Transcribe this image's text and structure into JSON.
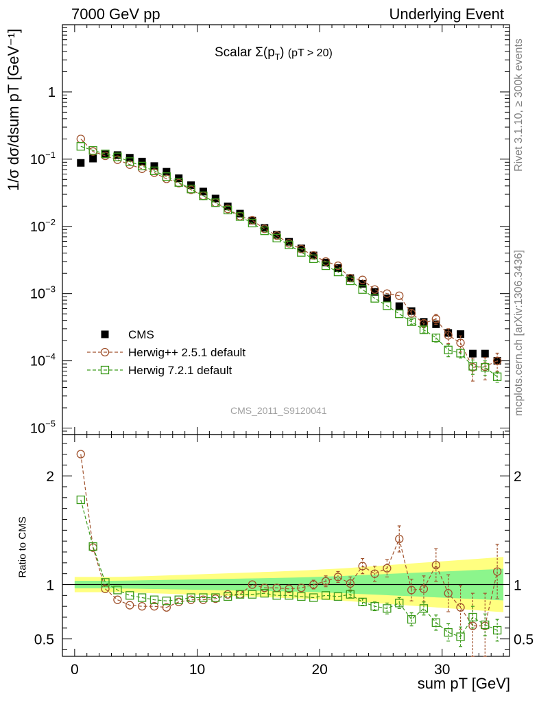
{
  "header": {
    "left": "7000 GeV pp",
    "right": "Underlying Event",
    "plot_title_prefix": "Scalar ",
    "plot_title_sigma": "Σ(p",
    "plot_title_sub": "T",
    "plot_title_suffix": ")",
    "plot_title_cut": "(pT > 20)",
    "analysis_tag": "CMS_2011_S9120041"
  },
  "side_labels": {
    "rivet": "Rivet 3.1.10, ≥ 300k events",
    "mcplots": "mcplots.cern.ch [arXiv:1306.3436]"
  },
  "colors": {
    "cms": "#000000",
    "herwigpp": "#a0522d",
    "herwig7": "#3a9a1a",
    "band_inner": "#8cf58c",
    "band_outer": "#ffff80"
  },
  "chart_data": [
    {
      "type": "scatter",
      "panel": "main",
      "title": "Scalar Σ(pT) (pT > 20)",
      "ylabel": "1/σ dσ/dsum pT [GeV⁻¹]",
      "xlim": [
        -1,
        35.5
      ],
      "ylim": [
        8e-06,
        10
      ],
      "yscale": "log",
      "yticks": [
        {
          "v": 1e-05,
          "m": "10",
          "e": "−5"
        },
        {
          "v": 0.0001,
          "m": "10",
          "e": "−4"
        },
        {
          "v": 0.001,
          "m": "10",
          "e": "−3"
        },
        {
          "v": 0.01,
          "m": "10",
          "e": "−2"
        },
        {
          "v": 0.1,
          "m": "10",
          "e": "−1"
        },
        {
          "v": 1,
          "m": "1",
          "e": ""
        }
      ],
      "legend_position": "lower-left",
      "x": [
        0.5,
        1.5,
        2.5,
        3.5,
        4.5,
        5.5,
        6.5,
        7.5,
        8.5,
        9.5,
        10.5,
        11.5,
        12.5,
        13.5,
        14.5,
        15.5,
        16.5,
        17.5,
        18.5,
        19.5,
        20.5,
        21.5,
        22.5,
        23.5,
        24.5,
        25.5,
        26.5,
        27.5,
        28.5,
        29.5,
        30.5,
        31.5,
        32.5,
        33.5,
        34.5
      ],
      "series": [
        {
          "name": "CMS",
          "marker": "filled-square",
          "values": [
            0.088,
            0.102,
            0.118,
            0.115,
            0.105,
            0.092,
            0.079,
            0.065,
            0.052,
            0.041,
            0.033,
            0.026,
            0.0198,
            0.0155,
            0.0122,
            0.0095,
            0.0075,
            0.0059,
            0.0047,
            0.0037,
            0.0029,
            0.0024,
            0.0017,
            0.0014,
            0.00106,
            0.00085,
            0.00065,
            0.00055,
            0.00038,
            0.00035,
            0.00026,
            0.00025,
            0.000128,
            0.000128,
            0.0001
          ]
        },
        {
          "name": "Herwig++ 2.5.1 default",
          "marker": "open-circle",
          "values": [
            0.2,
            0.13,
            0.112,
            0.098,
            0.083,
            0.072,
            0.063,
            0.051,
            0.044,
            0.035,
            0.0285,
            0.0225,
            0.0182,
            0.0142,
            0.0123,
            0.0092,
            0.0073,
            0.0056,
            0.0046,
            0.0037,
            0.003,
            0.0026,
            0.0017,
            0.0016,
            0.00115,
            0.001,
            0.00093,
            0.00051,
            0.00036,
            0.00042,
            0.00024,
            0.000185,
            8e-05,
            8.2e-05,
            0.0001
          ],
          "errors_up": [
            0,
            0,
            0,
            0,
            0,
            0,
            0,
            0,
            0,
            0,
            0,
            0,
            0,
            0,
            0,
            0,
            0,
            0,
            0,
            0,
            0,
            0,
            0,
            0,
            0,
            0,
            0,
            6e-05,
            5e-05,
            7e-05,
            6e-05,
            5e-05,
            3e-05,
            3e-05,
            3e-05
          ],
          "errors_down": [
            0,
            0,
            0,
            0,
            0,
            0,
            0,
            0,
            0,
            0,
            0,
            0,
            0,
            0,
            0,
            0,
            0,
            0,
            0,
            0,
            0,
            0,
            0,
            0,
            0,
            0,
            0,
            6e-05,
            5e-05,
            7e-05,
            6e-05,
            5e-05,
            3e-05,
            3e-05,
            3e-05
          ]
        },
        {
          "name": "Herwig 7.2.1 default",
          "marker": "open-square",
          "values": [
            0.155,
            0.135,
            0.12,
            0.108,
            0.092,
            0.079,
            0.067,
            0.055,
            0.045,
            0.036,
            0.0285,
            0.0225,
            0.0175,
            0.014,
            0.0112,
            0.0086,
            0.0067,
            0.0053,
            0.0041,
            0.0033,
            0.0026,
            0.0021,
            0.00155,
            0.00115,
            0.00085,
            0.00066,
            0.0005,
            0.00038,
            0.00029,
            0.00022,
            0.000145,
            0.00013,
            8.3e-05,
            8e-05,
            5.8e-05
          ],
          "errors_up": [
            0,
            0,
            0,
            0,
            0,
            0,
            0,
            0,
            0,
            0,
            0,
            0,
            0,
            0,
            0,
            0,
            0,
            0,
            0,
            0,
            0,
            0,
            0,
            0,
            0,
            0,
            0,
            3e-05,
            3e-05,
            3e-05,
            3e-05,
            2e-05,
            2e-05,
            2e-05,
            1e-05
          ],
          "errors_down": [
            0,
            0,
            0,
            0,
            0,
            0,
            0,
            0,
            0,
            0,
            0,
            0,
            0,
            0,
            0,
            0,
            0,
            0,
            0,
            0,
            0,
            0,
            0,
            0,
            0,
            0,
            0,
            3e-05,
            3e-05,
            3e-05,
            3e-05,
            2e-05,
            2e-05,
            2e-05,
            1e-05
          ]
        }
      ]
    },
    {
      "type": "scatter",
      "panel": "ratio",
      "ylabel": "Ratio to CMS",
      "xlabel": "sum pT [GeV]",
      "xlim": [
        -1,
        35.5
      ],
      "ylim": [
        0.34,
        2.38
      ],
      "yticks": [
        {
          "v": 0.5,
          "l": "0.5"
        },
        {
          "v": 1,
          "l": "1"
        },
        {
          "v": 2,
          "l": "2"
        }
      ],
      "xticks": [
        {
          "v": 0,
          "l": "0"
        },
        {
          "v": 10,
          "l": "10"
        },
        {
          "v": 20,
          "l": "20"
        },
        {
          "v": 30,
          "l": "30"
        }
      ],
      "band_x": [
        0,
        1,
        2,
        3,
        4,
        5,
        6,
        7,
        8,
        9,
        10,
        11,
        12,
        13,
        14,
        15,
        16,
        17,
        18,
        19,
        20,
        21,
        22,
        23,
        24,
        25,
        26,
        27,
        28,
        29,
        30,
        31,
        32,
        33,
        34,
        35
      ],
      "band_inner": [
        0.035,
        0.035,
        0.035,
        0.035,
        0.036,
        0.038,
        0.04,
        0.042,
        0.044,
        0.046,
        0.048,
        0.05,
        0.052,
        0.054,
        0.056,
        0.058,
        0.06,
        0.062,
        0.065,
        0.068,
        0.072,
        0.076,
        0.08,
        0.085,
        0.09,
        0.095,
        0.1,
        0.105,
        0.11,
        0.115,
        0.12,
        0.125,
        0.13,
        0.135,
        0.14,
        0.145
      ],
      "band_outer": [
        0.07,
        0.07,
        0.07,
        0.07,
        0.072,
        0.075,
        0.078,
        0.082,
        0.086,
        0.09,
        0.094,
        0.098,
        0.102,
        0.106,
        0.11,
        0.114,
        0.118,
        0.122,
        0.127,
        0.132,
        0.138,
        0.144,
        0.15,
        0.158,
        0.166,
        0.174,
        0.182,
        0.19,
        0.198,
        0.206,
        0.214,
        0.222,
        0.23,
        0.238,
        0.246,
        0.254
      ],
      "x": [
        0.5,
        1.5,
        2.5,
        3.5,
        4.5,
        5.5,
        6.5,
        7.5,
        8.5,
        9.5,
        10.5,
        11.5,
        12.5,
        13.5,
        14.5,
        15.5,
        16.5,
        17.5,
        18.5,
        19.5,
        20.5,
        21.5,
        22.5,
        23.5,
        24.5,
        25.5,
        26.5,
        27.5,
        28.5,
        29.5,
        30.5,
        31.5,
        32.5,
        33.5,
        34.5
      ],
      "series": [
        {
          "name": "Herwig++ 2.5.1 default",
          "marker": "open-circle",
          "values": [
            2.2,
            1.34,
            0.96,
            0.86,
            0.81,
            0.8,
            0.8,
            0.79,
            0.84,
            0.86,
            0.86,
            0.87,
            0.91,
            0.91,
            1.0,
            0.97,
            0.97,
            0.96,
            0.97,
            1.0,
            1.03,
            1.07,
            1.01,
            1.17,
            1.1,
            1.15,
            1.42,
            0.95,
            0.96,
            1.18,
            0.92,
            0.79,
            0.62,
            0.62,
            1.12
          ],
          "errors": [
            0,
            0,
            0,
            0,
            0,
            0,
            0,
            0,
            0,
            0,
            0,
            0,
            0,
            0,
            0,
            0,
            0,
            0,
            0,
            0.04,
            0.05,
            0.05,
            0.06,
            0.07,
            0.07,
            0.08,
            0.12,
            0.1,
            0.12,
            0.15,
            0.17,
            0.2,
            0.3,
            0.3,
            0.25
          ]
        },
        {
          "name": "Herwig 7.2.1 default",
          "marker": "open-square",
          "values": [
            1.78,
            1.35,
            1.02,
            0.95,
            0.9,
            0.88,
            0.86,
            0.85,
            0.86,
            0.88,
            0.88,
            0.88,
            0.89,
            0.91,
            0.91,
            0.92,
            0.9,
            0.9,
            0.89,
            0.88,
            0.9,
            0.89,
            0.91,
            0.84,
            0.8,
            0.78,
            0.83,
            0.68,
            0.78,
            0.65,
            0.56,
            0.52,
            0.7,
            0.63,
            0.58
          ],
          "errors": [
            0,
            0,
            0,
            0,
            0,
            0,
            0,
            0,
            0,
            0,
            0,
            0,
            0,
            0,
            0,
            0,
            0,
            0,
            0,
            0,
            0,
            0,
            0.03,
            0.03,
            0.04,
            0.05,
            0.05,
            0.06,
            0.06,
            0.07,
            0.08,
            0.09,
            0.1,
            0.1,
            0.1
          ]
        }
      ]
    }
  ]
}
